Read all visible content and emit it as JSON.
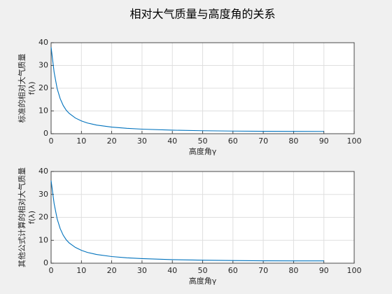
{
  "chart_data": [
    {
      "type": "line",
      "title": "相对大气质量与高度角的关系",
      "xlabel": "高度角γ",
      "ylabel": [
        "标准的相对大气质量",
        "f(λ)"
      ],
      "x": [
        0,
        1,
        2,
        3,
        4,
        5,
        6,
        8,
        10,
        12,
        15,
        20,
        25,
        30,
        40,
        50,
        60,
        70,
        80,
        90
      ],
      "series": [
        {
          "color": "#0072bd",
          "values": [
            38,
            27,
            19.8,
            15.4,
            12.4,
            10.3,
            8.9,
            6.9,
            5.6,
            4.7,
            3.8,
            2.9,
            2.36,
            2.0,
            1.55,
            1.31,
            1.15,
            1.06,
            1.02,
            1.0
          ]
        }
      ],
      "xlim": [
        0,
        100
      ],
      "xticks": [
        0,
        10,
        20,
        30,
        40,
        50,
        60,
        70,
        80,
        90,
        100
      ],
      "ylim": [
        0,
        40
      ],
      "yticks": [
        0,
        10,
        20,
        30,
        40
      ],
      "grid": true
    },
    {
      "type": "line",
      "xlabel": "高度角γ",
      "ylabel": [
        "其他公式计算的相对大气质量",
        "f(λ)"
      ],
      "x": [
        0,
        1,
        2,
        3,
        4,
        5,
        6,
        8,
        10,
        12,
        15,
        20,
        25,
        30,
        40,
        50,
        60,
        70,
        80,
        90
      ],
      "series": [
        {
          "color": "#0072bd",
          "values": [
            36,
            26,
            19.3,
            15.1,
            12.2,
            10.2,
            8.8,
            6.9,
            5.6,
            4.7,
            3.8,
            2.9,
            2.36,
            2.0,
            1.55,
            1.31,
            1.15,
            1.06,
            1.02,
            1.0
          ]
        }
      ],
      "xlim": [
        0,
        100
      ],
      "xticks": [
        0,
        10,
        20,
        30,
        40,
        50,
        60,
        70,
        80,
        90,
        100
      ],
      "ylim": [
        0,
        40
      ],
      "yticks": [
        0,
        10,
        20,
        30,
        40
      ],
      "grid": true
    }
  ]
}
